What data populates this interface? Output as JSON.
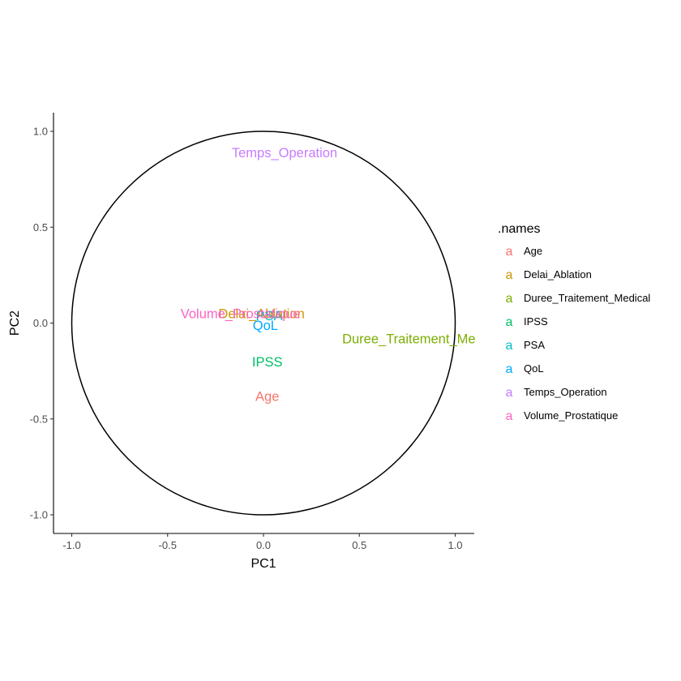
{
  "chart_data": {
    "type": "scatter",
    "title": "",
    "xlabel": "PC1",
    "ylabel": "PC2",
    "xlim": [
      -1.1,
      1.1
    ],
    "ylim": [
      -1.1,
      1.1
    ],
    "xticks": [
      {
        "value": -1.0,
        "label": "-1.0"
      },
      {
        "value": -0.5,
        "label": "-0.5"
      },
      {
        "value": 0.0,
        "label": "0.0"
      },
      {
        "value": 0.5,
        "label": "0.5"
      },
      {
        "value": 1.0,
        "label": "1.0"
      }
    ],
    "yticks": [
      {
        "value": -1.0,
        "label": "-1.0"
      },
      {
        "value": -0.5,
        "label": "-0.5"
      },
      {
        "value": 0.0,
        "label": "0.0"
      },
      {
        "value": 0.5,
        "label": "0.5"
      },
      {
        "value": 1.0,
        "label": "1.0"
      }
    ],
    "circle": {
      "center": [
        0,
        0
      ],
      "radius": 1
    },
    "grid": false,
    "legend": {
      "title": ".names",
      "placement": "right",
      "key_glyph": "a"
    },
    "points": [
      {
        "name": "Age",
        "x": 0.02,
        "y": -0.38,
        "color": "#F8766D"
      },
      {
        "name": "Delai_Ablation",
        "x": -0.01,
        "y": 0.05,
        "color": "#CD9600"
      },
      {
        "name": "Duree_Traitement_Medical",
        "x": 0.83,
        "y": -0.08,
        "color": "#7CAE00"
      },
      {
        "name": "IPSS",
        "x": 0.02,
        "y": -0.2,
        "color": "#00BE67"
      },
      {
        "name": "PSA",
        "x": 0.03,
        "y": 0.04,
        "color": "#00BFC4"
      },
      {
        "name": "QoL",
        "x": 0.01,
        "y": -0.01,
        "color": "#00A9FF"
      },
      {
        "name": "Temps_Operation",
        "x": 0.11,
        "y": 0.89,
        "color": "#C77CFF"
      },
      {
        "name": "Volume_Prostatique",
        "x": -0.12,
        "y": 0.05,
        "color": "#FF61C3"
      }
    ]
  }
}
